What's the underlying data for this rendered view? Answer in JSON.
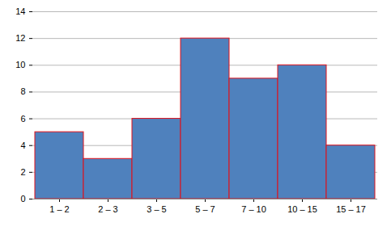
{
  "chart_data": {
    "type": "bar",
    "categories": [
      "1 – 2",
      "2 – 3",
      "3 – 5",
      "5 – 7",
      "7 – 10",
      "10 – 15",
      "15 – 17"
    ],
    "values": [
      5,
      3,
      6,
      12,
      9,
      10,
      4
    ],
    "color": "#4f81bd",
    "ylim": [
      0,
      14
    ],
    "yticks": [
      0,
      2,
      4,
      6,
      8,
      10,
      12,
      14
    ],
    "grid": true
  }
}
